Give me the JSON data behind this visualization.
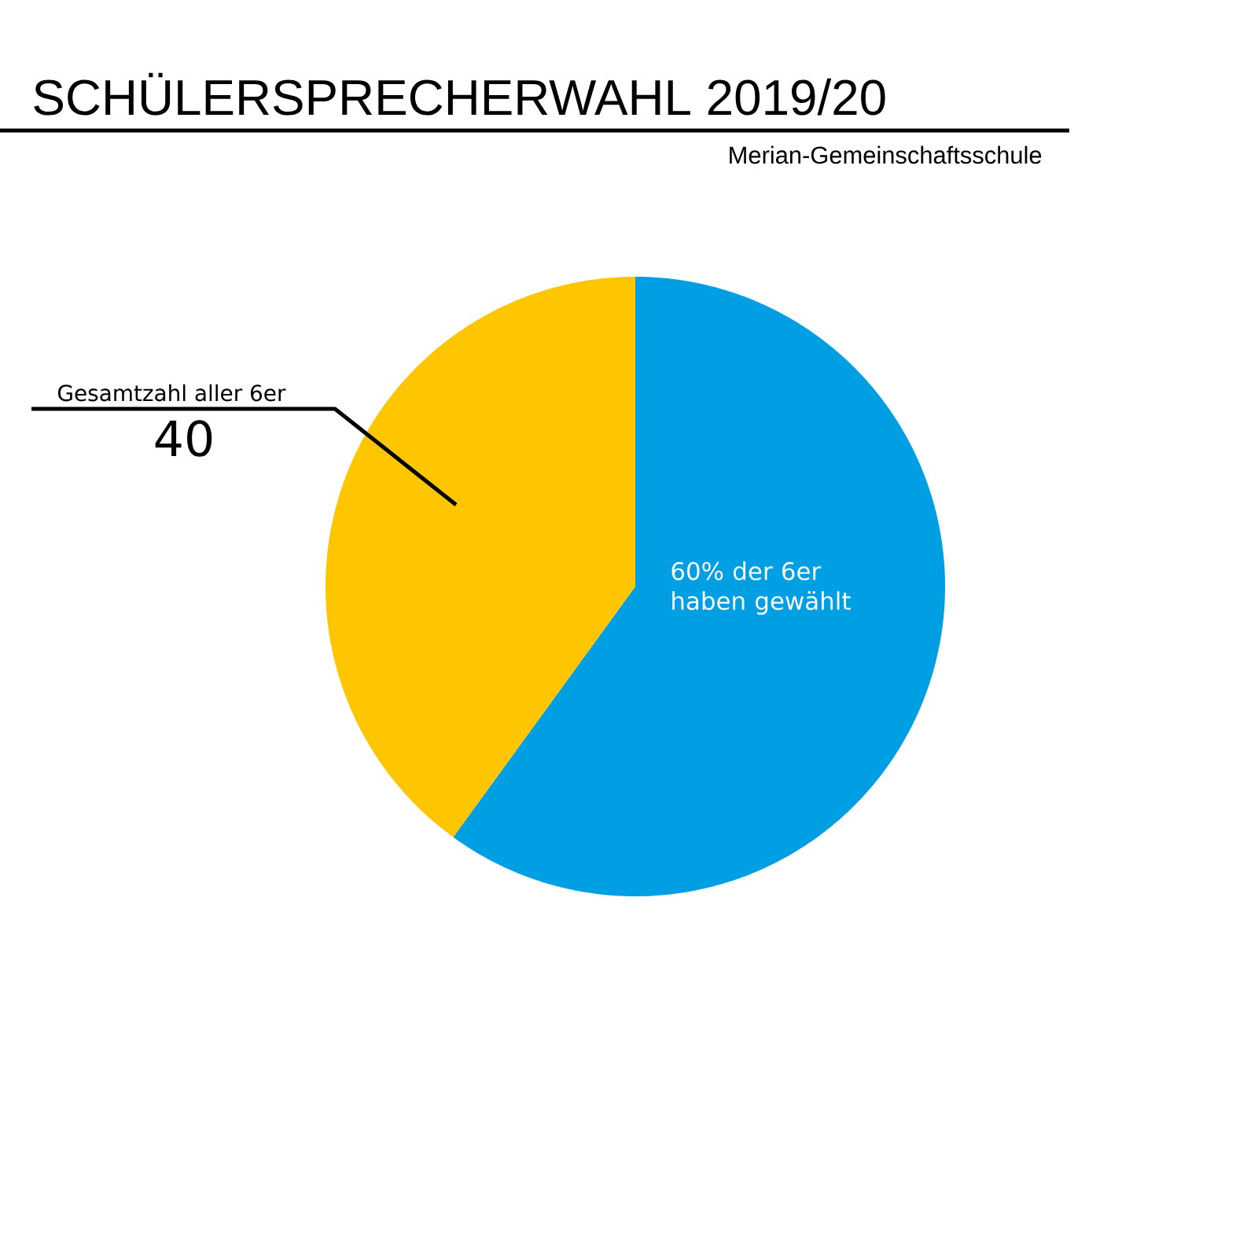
{
  "chart_data": {
    "type": "pie",
    "title": "SCHÜLERSPRECHERWAHL 2019/20",
    "subtitle": "Merian-Gemeinschaftsschule",
    "categories": [
      "60% der 6er haben gewählt",
      null
    ],
    "values": [
      60,
      40
    ],
    "colors": [
      "#009fe3",
      "#fec600"
    ],
    "annotations": [
      "Gesamtzahl aller 6er",
      "40"
    ]
  }
}
